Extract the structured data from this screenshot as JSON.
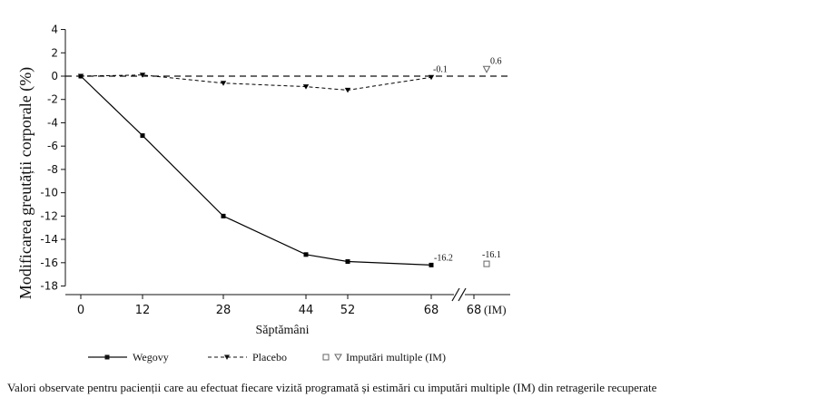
{
  "chart_data": {
    "type": "line",
    "ylabel": "Modificarea greutății corporale (%)",
    "xlabel": "Săptămâni",
    "x_ticks": [
      "0",
      "12",
      "28",
      "44",
      "52",
      "68",
      "68"
    ],
    "x_tick_extra": "(IM)",
    "x": [
      0,
      12,
      28,
      44,
      52,
      68
    ],
    "ylim": [
      -18,
      4
    ],
    "y_ticks": [
      4,
      2,
      0,
      -2,
      -4,
      -6,
      -8,
      -10,
      -12,
      -14,
      -16,
      -18
    ],
    "reference_line": 0,
    "series": [
      {
        "name": "Wegovy",
        "values": [
          0,
          -5.1,
          -12.0,
          -15.3,
          -15.9,
          -16.2
        ],
        "style": "solid",
        "marker": "square",
        "color": "#000000"
      },
      {
        "name": "Placebo",
        "values": [
          0,
          0.1,
          -0.6,
          -0.9,
          -1.2,
          -0.1
        ],
        "style": "dashed",
        "marker": "triangle-down",
        "color": "#000000"
      }
    ],
    "imputation": {
      "name": "Imputări multiple (IM)",
      "wegovy_value": -16.1,
      "placebo_value": 0.6
    },
    "annotations": [
      "-16.2",
      "-0.1",
      "-16.1",
      "0.6"
    ],
    "grid": false,
    "legend_position": "bottom"
  },
  "caption": "Valori observate pentru pacienții care au efectuat fiecare vizită programată și estimări cu imputări multiple (IM) din retragerile recuperate"
}
